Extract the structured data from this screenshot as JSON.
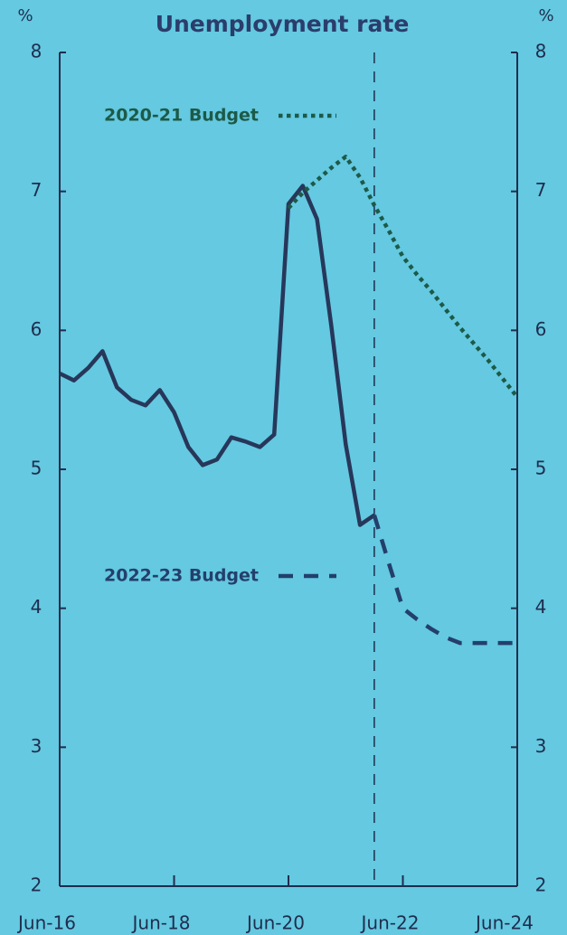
{
  "chart_data": {
    "type": "line",
    "title": "Unemployment rate",
    "ylabel": "%",
    "y2label": "%",
    "categories": [
      "Jun-16",
      null,
      null,
      null,
      null,
      null,
      null,
      null,
      "Jun-18",
      null,
      null,
      null,
      null,
      null,
      null,
      null,
      "Jun-20",
      null,
      null,
      null,
      null,
      null,
      null,
      null,
      "Jun-22",
      null,
      null,
      null,
      null,
      null,
      null,
      null,
      "Jun-24"
    ],
    "series": [
      {
        "color": "#27375a",
        "style": "solid",
        "values": [
          5.69,
          5.64,
          5.73,
          5.85,
          5.59,
          5.5,
          5.46,
          5.57,
          5.41,
          5.16,
          5.03,
          5.07,
          5.23,
          5.2,
          5.16,
          5.25,
          6.91,
          7.04,
          6.8,
          6.03,
          5.18,
          4.6,
          4.67,
          null,
          null,
          null,
          null,
          null,
          null,
          null,
          null,
          null,
          null
        ]
      },
      {
        "name": "2022-23 Budget",
        "color": "#243f6b",
        "style": "dashed",
        "values": [
          null,
          null,
          null,
          null,
          null,
          null,
          null,
          null,
          null,
          null,
          null,
          null,
          null,
          null,
          null,
          null,
          null,
          null,
          null,
          null,
          null,
          null,
          4.67,
          4.33,
          4.0,
          3.92,
          3.85,
          3.79,
          3.75,
          3.75,
          3.75,
          3.75,
          3.75
        ]
      },
      {
        "name": "2020-21 Budget",
        "color": "#1d5a48",
        "style": "dotted",
        "values": [
          null,
          null,
          null,
          null,
          null,
          null,
          null,
          null,
          null,
          null,
          null,
          null,
          null,
          null,
          null,
          null,
          6.88,
          6.99,
          7.08,
          7.17,
          7.25,
          7.1,
          6.9,
          6.72,
          6.53,
          6.4,
          6.28,
          6.15,
          6.02,
          5.9,
          5.78,
          5.65,
          5.52
        ]
      }
    ],
    "ylim": [
      2,
      8
    ],
    "yticks": [
      2,
      3,
      4,
      5,
      6,
      7,
      8
    ],
    "y2lim": [
      2,
      8
    ],
    "y2ticks": [
      2,
      3,
      4,
      5,
      6,
      7,
      8
    ]
  }
}
